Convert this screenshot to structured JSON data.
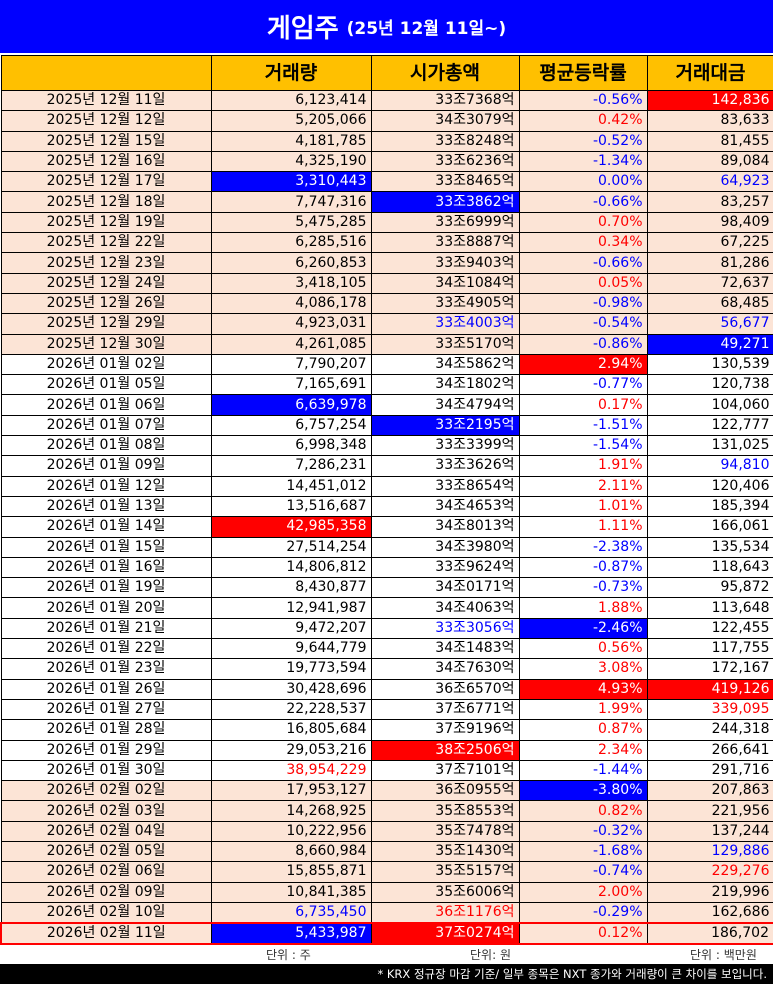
{
  "title": {
    "main": "게임주",
    "sub": "(25년 12월 11일~)"
  },
  "headers": [
    "",
    "거래량",
    "시가총액",
    "평균등락률",
    "거래대금"
  ],
  "rows": [
    {
      "date": "2025년 12월 11일",
      "volume": "6,123,414",
      "mcap": "33조7368억",
      "change": "-0.56%",
      "amount": "142,836",
      "band": "peach",
      "style": {
        "change": "blue-txt",
        "amount": "red-bg"
      }
    },
    {
      "date": "2025년 12월 12일",
      "volume": "5,205,066",
      "mcap": "34조3079억",
      "change": "0.42%",
      "amount": "83,633",
      "band": "peach",
      "style": {
        "change": "red-txt"
      }
    },
    {
      "date": "2025년 12월 15일",
      "volume": "4,181,785",
      "mcap": "33조8248억",
      "change": "-0.52%",
      "amount": "81,455",
      "band": "peach",
      "style": {
        "change": "blue-txt"
      }
    },
    {
      "date": "2025년 12월 16일",
      "volume": "4,325,190",
      "mcap": "33조6236억",
      "change": "-1.34%",
      "amount": "89,084",
      "band": "peach",
      "style": {
        "change": "blue-txt"
      }
    },
    {
      "date": "2025년 12월 17일",
      "volume": "3,310,443",
      "mcap": "33조8465억",
      "change": "0.00%",
      "amount": "64,923",
      "band": "peach",
      "style": {
        "volume": "blue-bg",
        "change": "blue-txt",
        "amount": "blue-txt"
      }
    },
    {
      "date": "2025년 12월 18일",
      "volume": "7,747,316",
      "mcap": "33조3862억",
      "change": "-0.66%",
      "amount": "83,257",
      "band": "peach",
      "style": {
        "mcap": "blue-bg",
        "change": "blue-txt"
      }
    },
    {
      "date": "2025년 12월 19일",
      "volume": "5,475,285",
      "mcap": "33조6999억",
      "change": "0.70%",
      "amount": "98,409",
      "band": "peach",
      "style": {
        "change": "red-txt"
      }
    },
    {
      "date": "2025년 12월 22일",
      "volume": "6,285,516",
      "mcap": "33조8887억",
      "change": "0.34%",
      "amount": "67,225",
      "band": "peach",
      "style": {
        "change": "red-txt"
      }
    },
    {
      "date": "2025년 12월 23일",
      "volume": "6,260,853",
      "mcap": "33조9403억",
      "change": "-0.66%",
      "amount": "81,286",
      "band": "peach",
      "style": {
        "change": "blue-txt"
      }
    },
    {
      "date": "2025년 12월 24일",
      "volume": "3,418,105",
      "mcap": "34조1084억",
      "change": "0.05%",
      "amount": "72,637",
      "band": "peach",
      "style": {
        "change": "red-txt"
      }
    },
    {
      "date": "2025년 12월 26일",
      "volume": "4,086,178",
      "mcap": "33조4905억",
      "change": "-0.98%",
      "amount": "68,485",
      "band": "peach",
      "style": {
        "change": "blue-txt"
      }
    },
    {
      "date": "2025년 12월 29일",
      "volume": "4,923,031",
      "mcap": "33조4003억",
      "change": "-0.54%",
      "amount": "56,677",
      "band": "peach",
      "style": {
        "mcap": "blue-txt",
        "change": "blue-txt",
        "amount": "blue-txt"
      }
    },
    {
      "date": "2025년 12월 30일",
      "volume": "4,261,085",
      "mcap": "33조5170억",
      "change": "-0.86%",
      "amount": "49,271",
      "band": "peach",
      "style": {
        "change": "blue-txt",
        "amount": "blue-bg"
      }
    },
    {
      "date": "2026년 01월 02일",
      "volume": "7,790,207",
      "mcap": "34조5862억",
      "change": "2.94%",
      "amount": "130,539",
      "band": "white",
      "style": {
        "change": "red-bg"
      }
    },
    {
      "date": "2026년 01월 05일",
      "volume": "7,165,691",
      "mcap": "34조1802억",
      "change": "-0.77%",
      "amount": "120,738",
      "band": "white",
      "style": {
        "change": "blue-txt"
      }
    },
    {
      "date": "2026년 01월 06일",
      "volume": "6,639,978",
      "mcap": "34조4794억",
      "change": "0.17%",
      "amount": "104,060",
      "band": "white",
      "style": {
        "volume": "blue-bg",
        "change": "red-txt"
      }
    },
    {
      "date": "2026년 01월 07일",
      "volume": "6,757,254",
      "mcap": "33조2195억",
      "change": "-1.51%",
      "amount": "122,777",
      "band": "white",
      "style": {
        "mcap": "blue-bg",
        "change": "blue-txt"
      }
    },
    {
      "date": "2026년 01월 08일",
      "volume": "6,998,348",
      "mcap": "33조3399억",
      "change": "-1.54%",
      "amount": "131,025",
      "band": "white",
      "style": {
        "change": "blue-txt"
      }
    },
    {
      "date": "2026년 01월 09일",
      "volume": "7,286,231",
      "mcap": "33조3626억",
      "change": "1.91%",
      "amount": "94,810",
      "band": "white",
      "style": {
        "change": "red-txt",
        "amount": "blue-txt"
      }
    },
    {
      "date": "2026년 01월 12일",
      "volume": "14,451,012",
      "mcap": "33조8654억",
      "change": "2.11%",
      "amount": "120,406",
      "band": "white",
      "style": {
        "change": "red-txt"
      }
    },
    {
      "date": "2026년 01월 13일",
      "volume": "13,516,687",
      "mcap": "34조4653억",
      "change": "1.01%",
      "amount": "185,394",
      "band": "white",
      "style": {
        "change": "red-txt"
      }
    },
    {
      "date": "2026년 01월 14일",
      "volume": "42,985,358",
      "mcap": "34조8013억",
      "change": "1.11%",
      "amount": "166,061",
      "band": "white",
      "style": {
        "volume": "red-bg",
        "change": "red-txt"
      }
    },
    {
      "date": "2026년 01월 15일",
      "volume": "27,514,254",
      "mcap": "34조3980억",
      "change": "-2.38%",
      "amount": "135,534",
      "band": "white",
      "style": {
        "change": "blue-txt"
      }
    },
    {
      "date": "2026년 01월 16일",
      "volume": "14,806,812",
      "mcap": "33조9624억",
      "change": "-0.87%",
      "amount": "118,643",
      "band": "white",
      "style": {
        "change": "blue-txt"
      }
    },
    {
      "date": "2026년 01월 19일",
      "volume": "8,430,877",
      "mcap": "34조0171억",
      "change": "-0.73%",
      "amount": "95,872",
      "band": "white",
      "style": {
        "change": "blue-txt"
      }
    },
    {
      "date": "2026년 01월 20일",
      "volume": "12,941,987",
      "mcap": "34조4063억",
      "change": "1.88%",
      "amount": "113,648",
      "band": "white",
      "style": {
        "change": "red-txt"
      }
    },
    {
      "date": "2026년 01월 21일",
      "volume": "9,472,207",
      "mcap": "33조3056억",
      "change": "-2.46%",
      "amount": "122,455",
      "band": "white",
      "style": {
        "mcap": "blue-txt",
        "change": "blue-bg"
      }
    },
    {
      "date": "2026년 01월 22일",
      "volume": "9,644,779",
      "mcap": "34조1483억",
      "change": "0.56%",
      "amount": "117,755",
      "band": "white",
      "style": {
        "change": "red-txt"
      }
    },
    {
      "date": "2026년 01월 23일",
      "volume": "19,773,594",
      "mcap": "34조7630억",
      "change": "3.08%",
      "amount": "172,167",
      "band": "white",
      "style": {
        "change": "red-txt"
      }
    },
    {
      "date": "2026년 01월 26일",
      "volume": "30,428,696",
      "mcap": "36조6570억",
      "change": "4.93%",
      "amount": "419,126",
      "band": "white",
      "style": {
        "change": "red-bg",
        "amount": "red-bg"
      }
    },
    {
      "date": "2026년 01월 27일",
      "volume": "22,228,537",
      "mcap": "37조6771억",
      "change": "1.99%",
      "amount": "339,095",
      "band": "white",
      "style": {
        "change": "red-txt",
        "amount": "red-txt"
      }
    },
    {
      "date": "2026년 01월 28일",
      "volume": "16,805,684",
      "mcap": "37조9196억",
      "change": "0.87%",
      "amount": "244,318",
      "band": "white",
      "style": {
        "change": "red-txt"
      }
    },
    {
      "date": "2026년 01월 29일",
      "volume": "29,053,216",
      "mcap": "38조2506억",
      "change": "2.34%",
      "amount": "266,641",
      "band": "white",
      "style": {
        "mcap": "red-bg",
        "change": "red-txt"
      }
    },
    {
      "date": "2026년 01월 30일",
      "volume": "38,954,229",
      "mcap": "37조7101억",
      "change": "-1.44%",
      "amount": "291,716",
      "band": "white",
      "style": {
        "volume": "red-txt",
        "change": "blue-txt"
      }
    },
    {
      "date": "2026년 02월 02일",
      "volume": "17,953,127",
      "mcap": "36조0955억",
      "change": "-3.80%",
      "amount": "207,863",
      "band": "peach",
      "style": {
        "change": "blue-bg"
      }
    },
    {
      "date": "2026년 02월 03일",
      "volume": "14,268,925",
      "mcap": "35조8553억",
      "change": "0.82%",
      "amount": "221,956",
      "band": "peach",
      "style": {
        "change": "red-txt"
      }
    },
    {
      "date": "2026년 02월 04일",
      "volume": "10,222,956",
      "mcap": "35조7478억",
      "change": "-0.32%",
      "amount": "137,244",
      "band": "peach",
      "style": {
        "change": "blue-txt"
      }
    },
    {
      "date": "2026년 02월 05일",
      "volume": "8,660,984",
      "mcap": "35조1430억",
      "change": "-1.68%",
      "amount": "129,886",
      "band": "peach",
      "style": {
        "change": "blue-txt",
        "amount": "blue-txt"
      }
    },
    {
      "date": "2026년 02월 06일",
      "volume": "15,855,871",
      "mcap": "35조5157억",
      "change": "-0.74%",
      "amount": "229,276",
      "band": "peach",
      "style": {
        "change": "blue-txt",
        "amount": "red-txt"
      }
    },
    {
      "date": "2026년 02월 09일",
      "volume": "10,841,385",
      "mcap": "35조6006억",
      "change": "2.00%",
      "amount": "219,996",
      "band": "peach",
      "style": {
        "change": "red-txt"
      }
    },
    {
      "date": "2026년 02월 10일",
      "volume": "6,735,450",
      "mcap": "36조1176억",
      "change": "-0.29%",
      "amount": "162,686",
      "band": "peach",
      "style": {
        "volume": "blue-txt",
        "mcap": "red-txt",
        "change": "blue-txt"
      }
    },
    {
      "date": "2026년 02월 11일",
      "volume": "5,433,987",
      "mcap": "37조0274억",
      "change": "0.12%",
      "amount": "186,702",
      "band": "peach",
      "last": true,
      "style": {
        "volume": "blue-bg",
        "mcap": "red-bg",
        "change": "red-txt"
      }
    }
  ],
  "units": {
    "volume": "단위 : 주",
    "mcap": "단위: 원",
    "amount": "단위 : 백만원"
  },
  "footnote": "* KRX 정규장 마감 기준/ 일부 종목은 NXT 종가와 거래량이 큰 차이를 보입니다.",
  "colors": {
    "title_bg": "#0000ff",
    "header_bg": "#ffc000",
    "peach": "#fce4d6",
    "up": "#ff0000",
    "down": "#0000ff"
  }
}
